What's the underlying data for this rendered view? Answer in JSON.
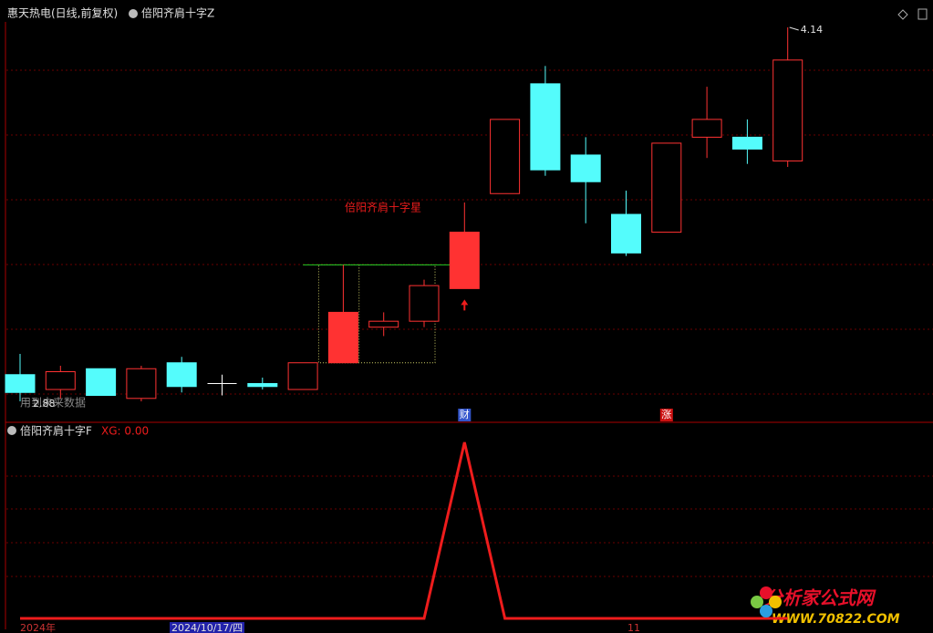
{
  "header": {
    "title": "惠天热电(日线,前复权)",
    "formula": "倍阳齐肩十字Z"
  },
  "chart_data": {
    "type": "candlestick",
    "candles": [
      {
        "open": 2.97,
        "high": 3.04,
        "low": 2.88,
        "close": 2.91
      },
      {
        "open": 2.92,
        "high": 3.0,
        "low": 2.89,
        "close": 2.98
      },
      {
        "open": 2.99,
        "high": 2.99,
        "low": 2.9,
        "close": 2.9
      },
      {
        "open": 2.89,
        "high": 3.0,
        "low": 2.88,
        "close": 2.99
      },
      {
        "open": 3.01,
        "high": 3.03,
        "low": 2.91,
        "close": 2.93
      },
      {
        "open": 2.94,
        "high": 2.97,
        "low": 2.9,
        "close": 2.94
      },
      {
        "open": 2.94,
        "high": 2.96,
        "low": 2.92,
        "close": 2.93
      },
      {
        "open": 2.92,
        "high": 3.01,
        "low": 2.92,
        "close": 3.01
      },
      {
        "open": 3.01,
        "high": 3.34,
        "low": 3.01,
        "close": 3.18
      },
      {
        "open": 3.13,
        "high": 3.18,
        "low": 3.1,
        "close": 3.15
      },
      {
        "open": 3.15,
        "high": 3.29,
        "low": 3.13,
        "close": 3.27
      },
      {
        "open": 3.26,
        "high": 3.55,
        "low": 3.26,
        "close": 3.45
      },
      {
        "open": 3.58,
        "high": 3.83,
        "low": 3.58,
        "close": 3.83
      },
      {
        "open": 3.95,
        "high": 4.01,
        "low": 3.64,
        "close": 3.66
      },
      {
        "open": 3.71,
        "high": 3.77,
        "low": 3.48,
        "close": 3.62
      },
      {
        "open": 3.51,
        "high": 3.59,
        "low": 3.37,
        "close": 3.38
      },
      {
        "open": 3.45,
        "high": 3.75,
        "low": 3.45,
        "close": 3.75
      },
      {
        "open": 3.77,
        "high": 3.94,
        "low": 3.7,
        "close": 3.83
      },
      {
        "open": 3.77,
        "high": 3.83,
        "low": 3.68,
        "close": 3.73
      },
      {
        "open": 3.69,
        "high": 4.14,
        "low": 3.67,
        "close": 4.03
      }
    ],
    "up_color": "#ff3232",
    "down_color": "#54fcfc",
    "doji_color": "#ffffff",
    "filled_up": [
      8,
      11
    ],
    "ylim": [
      2.85,
      4.2
    ],
    "high_label": "4.14",
    "low_label": "2.88",
    "note": "用到未来数据",
    "resistance": 3.34,
    "annotation": "倍阳齐肩十字星",
    "event_labels": [
      "财",
      "涨"
    ],
    "indicator": {
      "name": "倍阳齐肩十字F",
      "readout": "XG: 0.00",
      "current": 0,
      "values": [
        0,
        0,
        0,
        0,
        0,
        0,
        0,
        0,
        0,
        0,
        0,
        1,
        0,
        0,
        0,
        0,
        0,
        0,
        0,
        0
      ],
      "ylim": [
        0,
        1
      ],
      "color": "#ee1c1c"
    },
    "x_labels": [
      "2024年",
      "2024/10/17/四",
      "11"
    ]
  },
  "watermark": {
    "name": "分析家公式网",
    "url": "WWW.70822.COM"
  }
}
